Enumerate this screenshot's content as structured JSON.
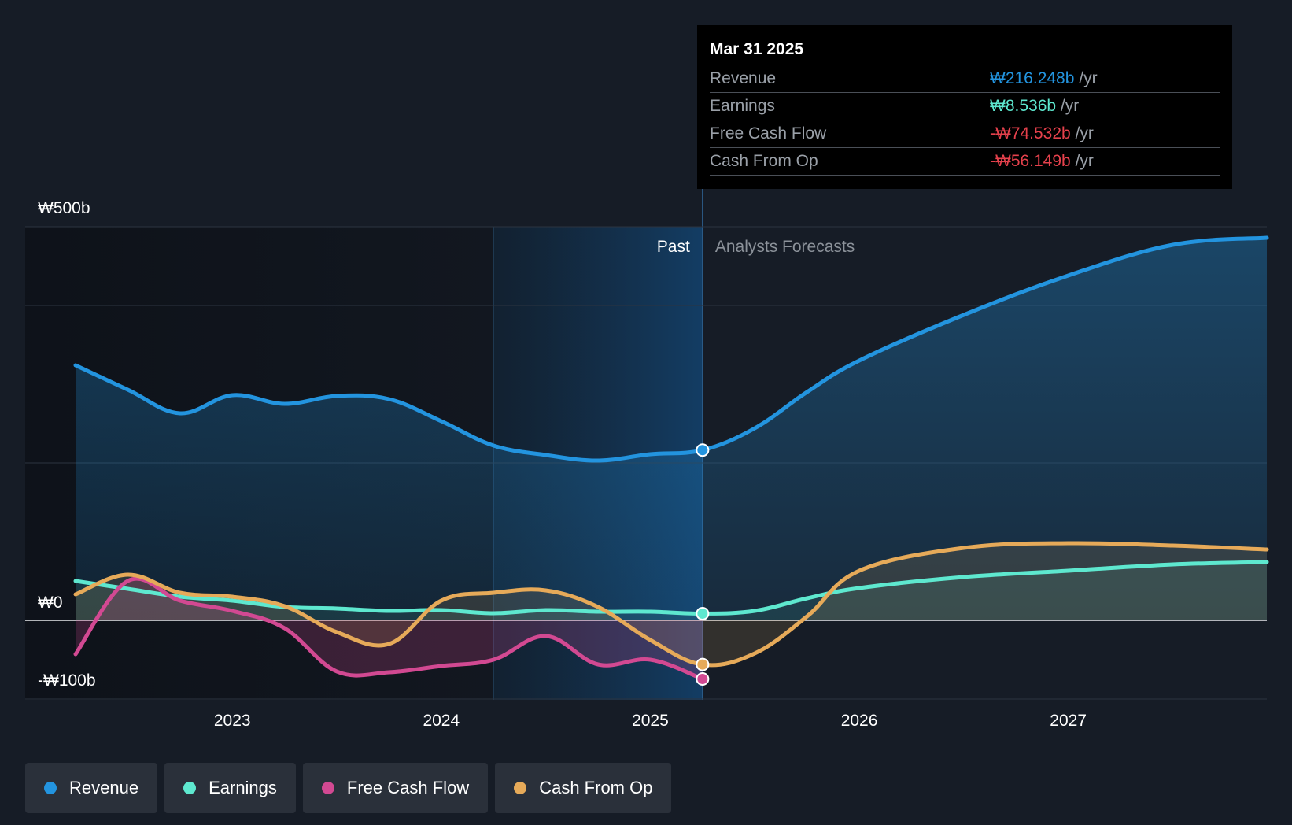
{
  "chart_data": {
    "type": "area",
    "currency_symbol": "₩",
    "y_labels": {
      "top": "₩500b",
      "zero": "₩0",
      "bottom": "-₩100b"
    },
    "ylim": [
      -100,
      500
    ],
    "xlim": [
      2022.2,
      2027.95
    ],
    "x_ticks": [
      {
        "value": 2023,
        "label": "2023"
      },
      {
        "value": 2024,
        "label": "2024"
      },
      {
        "value": 2025,
        "label": "2025"
      },
      {
        "value": 2026,
        "label": "2026"
      },
      {
        "value": 2027,
        "label": "2027"
      }
    ],
    "past_label": "Past",
    "forecast_label": "Analysts Forecasts",
    "divider_x": 2025.25,
    "highlight_start_x": 2024.25,
    "series": [
      {
        "name": "Revenue",
        "color": "#2394df",
        "points": [
          [
            2022.25,
            324
          ],
          [
            2022.5,
            293
          ],
          [
            2022.75,
            263
          ],
          [
            2023.0,
            286
          ],
          [
            2023.25,
            275
          ],
          [
            2023.5,
            285
          ],
          [
            2023.75,
            281
          ],
          [
            2024.0,
            253
          ],
          [
            2024.25,
            222
          ],
          [
            2024.5,
            210
          ],
          [
            2024.75,
            203
          ],
          [
            2025.0,
            211
          ],
          [
            2025.25,
            216.248
          ],
          [
            2025.5,
            244
          ],
          [
            2025.75,
            290
          ],
          [
            2026.0,
            330
          ],
          [
            2026.5,
            388
          ],
          [
            2027.0,
            438
          ],
          [
            2027.5,
            477
          ],
          [
            2027.95,
            486
          ]
        ]
      },
      {
        "name": "Earnings",
        "color": "#5ee8cf",
        "points": [
          [
            2022.25,
            50
          ],
          [
            2022.5,
            40
          ],
          [
            2022.75,
            30
          ],
          [
            2023.0,
            25
          ],
          [
            2023.25,
            17
          ],
          [
            2023.5,
            15
          ],
          [
            2023.75,
            12
          ],
          [
            2024.0,
            13
          ],
          [
            2024.25,
            9
          ],
          [
            2024.5,
            13
          ],
          [
            2024.75,
            11
          ],
          [
            2025.0,
            11
          ],
          [
            2025.25,
            8.536
          ],
          [
            2025.5,
            12
          ],
          [
            2025.75,
            28
          ],
          [
            2026.0,
            41
          ],
          [
            2026.5,
            55
          ],
          [
            2027.0,
            63
          ],
          [
            2027.5,
            71
          ],
          [
            2027.95,
            74
          ]
        ]
      },
      {
        "name": "Free Cash Flow",
        "color": "#d24992",
        "points": [
          [
            2022.25,
            -43
          ],
          [
            2022.5,
            50
          ],
          [
            2022.75,
            25
          ],
          [
            2023.0,
            12
          ],
          [
            2023.25,
            -10
          ],
          [
            2023.5,
            -65
          ],
          [
            2023.75,
            -66
          ],
          [
            2024.0,
            -58
          ],
          [
            2024.25,
            -50
          ],
          [
            2024.5,
            -20
          ],
          [
            2024.75,
            -56
          ],
          [
            2025.0,
            -50
          ],
          [
            2025.25,
            -74.532
          ]
        ]
      },
      {
        "name": "Cash From Op",
        "color": "#e6aa59",
        "points": [
          [
            2022.25,
            33
          ],
          [
            2022.5,
            58
          ],
          [
            2022.75,
            35
          ],
          [
            2023.0,
            30
          ],
          [
            2023.25,
            18
          ],
          [
            2023.5,
            -15
          ],
          [
            2023.75,
            -30
          ],
          [
            2024.0,
            25
          ],
          [
            2024.25,
            35
          ],
          [
            2024.5,
            38
          ],
          [
            2024.75,
            17
          ],
          [
            2025.0,
            -25
          ],
          [
            2025.25,
            -56.149
          ],
          [
            2025.5,
            -42
          ],
          [
            2025.75,
            5
          ],
          [
            2026.0,
            63
          ],
          [
            2026.5,
            92
          ],
          [
            2027.0,
            98
          ],
          [
            2027.5,
            95
          ],
          [
            2027.95,
            90
          ]
        ]
      }
    ]
  },
  "tooltip": {
    "date": "Mar 31 2025",
    "rows": [
      {
        "label": "Revenue",
        "value": "₩216.248b",
        "unit": " /yr",
        "color": "#2394df"
      },
      {
        "label": "Earnings",
        "value": "₩8.536b",
        "unit": " /yr",
        "color": "#5ee8cf"
      },
      {
        "label": "Free Cash Flow",
        "value": "-₩74.532b",
        "unit": " /yr",
        "color": "#e5414c"
      },
      {
        "label": "Cash From Op",
        "value": "-₩56.149b",
        "unit": " /yr",
        "color": "#e5414c"
      }
    ]
  },
  "legend": [
    {
      "label": "Revenue",
      "color": "#2394df"
    },
    {
      "label": "Earnings",
      "color": "#5ee8cf"
    },
    {
      "label": "Free Cash Flow",
      "color": "#d24992"
    },
    {
      "label": "Cash From Op",
      "color": "#e6aa59"
    }
  ]
}
